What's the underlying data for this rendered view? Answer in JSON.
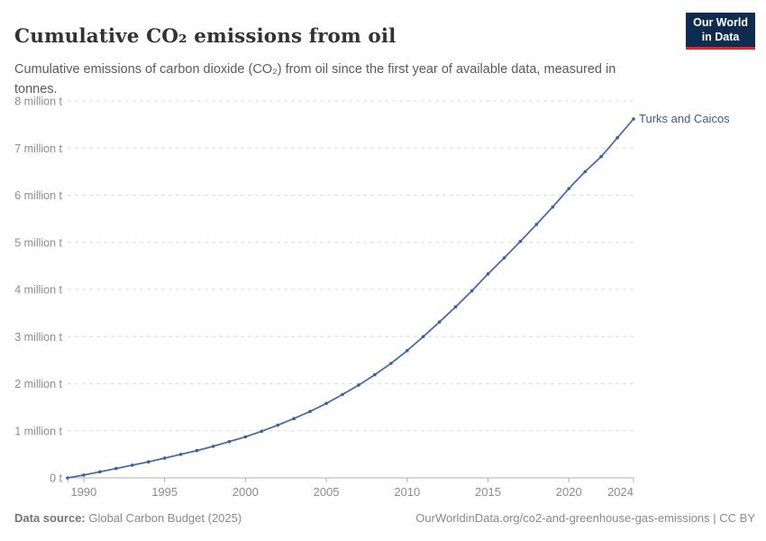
{
  "header": {
    "title": "Cumulative CO₂ emissions from oil",
    "subtitle": "Cumulative emissions of carbon dioxide (CO₂) from oil since the first year of available data, measured in tonnes.",
    "logo": {
      "line1": "Our World",
      "line2": "in Data"
    }
  },
  "chart_data": {
    "type": "line",
    "title": "Cumulative CO₂ emissions from oil",
    "unit": "tonnes",
    "xlim": [
      1989,
      2024
    ],
    "ylim": [
      0,
      8000000
    ],
    "grid": "horizontal-dashed",
    "legend": "end-of-line-label",
    "x_ticks": [
      1990,
      1995,
      2000,
      2005,
      2010,
      2015,
      2020,
      2024
    ],
    "y_ticks": [
      {
        "value": 0,
        "label": "0 t"
      },
      {
        "value": 1000000,
        "label": "1 million t"
      },
      {
        "value": 2000000,
        "label": "2 million t"
      },
      {
        "value": 3000000,
        "label": "3 million t"
      },
      {
        "value": 4000000,
        "label": "4 million t"
      },
      {
        "value": 5000000,
        "label": "5 million t"
      },
      {
        "value": 6000000,
        "label": "6 million t"
      },
      {
        "value": 7000000,
        "label": "7 million t"
      },
      {
        "value": 8000000,
        "label": "8 million t"
      }
    ],
    "series": [
      {
        "name": "Turks and Caicos",
        "color": "#4c6ba8",
        "marker_color": "#3f5e96",
        "x": [
          1989,
          1990,
          1991,
          1992,
          1993,
          1994,
          1995,
          1996,
          1997,
          1998,
          1999,
          2000,
          2001,
          2002,
          2003,
          2004,
          2005,
          2006,
          2007,
          2008,
          2009,
          2010,
          2011,
          2012,
          2013,
          2014,
          2015,
          2016,
          2017,
          2018,
          2019,
          2020,
          2021,
          2022,
          2023,
          2024
        ],
        "values": [
          0,
          60000,
          130000,
          200000,
          270000,
          340000,
          420000,
          500000,
          580000,
          670000,
          770000,
          870000,
          990000,
          1120000,
          1260000,
          1410000,
          1580000,
          1770000,
          1970000,
          2190000,
          2430000,
          2700000,
          3000000,
          3310000,
          3630000,
          3970000,
          4330000,
          4670000,
          5020000,
          5380000,
          5750000,
          6140000,
          6500000,
          6820000,
          7220000,
          7620000
        ]
      }
    ]
  },
  "footer": {
    "source_label": "Data source:",
    "source_value": " Global Carbon Budget (2025)",
    "link": "OurWorldinData.org/co2-and-greenhouse-gas-emissions | CC BY"
  },
  "colors": {
    "grid": "#dcdcdc",
    "axis": "#b0b0b0",
    "tick_text": "#8c8c8c",
    "entity_label": "#3d5c8f",
    "logo_bg": "#0e2c4f",
    "logo_red": "#d12b33"
  }
}
